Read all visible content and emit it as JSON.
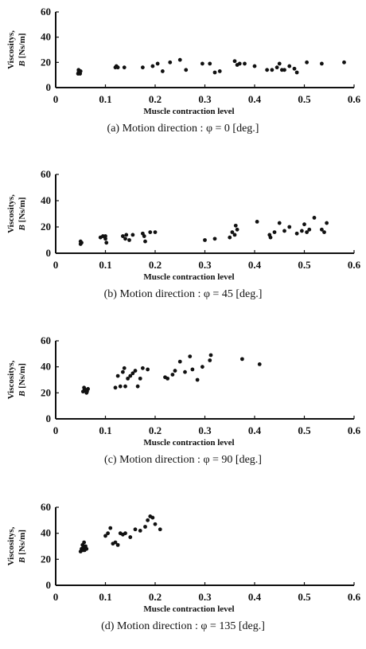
{
  "chart_data": [
    {
      "type": "scatter",
      "caption": "(a) Motion direction : φ = 0 [deg.]",
      "xlabel": "Muscle contraction level",
      "ylabel_line1": "Viscositys,",
      "ylabel_line2": "B [Ns/m]",
      "xlim": [
        0,
        0.6
      ],
      "ylim": [
        0,
        60
      ],
      "xticks": [
        "0",
        "0.1",
        "0.2",
        "0.3",
        "0.4",
        "0.5",
        "0.6"
      ],
      "yticks": [
        "0",
        "20",
        "40",
        "60"
      ],
      "grid": false,
      "points": [
        [
          0.045,
          11
        ],
        [
          0.046,
          12
        ],
        [
          0.047,
          13
        ],
        [
          0.048,
          12
        ],
        [
          0.049,
          11
        ],
        [
          0.046,
          14
        ],
        [
          0.05,
          13
        ],
        [
          0.048,
          12.5
        ],
        [
          0.12,
          16
        ],
        [
          0.122,
          17
        ],
        [
          0.125,
          16
        ],
        [
          0.138,
          16
        ],
        [
          0.175,
          16
        ],
        [
          0.195,
          17
        ],
        [
          0.205,
          19
        ],
        [
          0.215,
          13
        ],
        [
          0.23,
          20
        ],
        [
          0.25,
          22
        ],
        [
          0.262,
          14
        ],
        [
          0.295,
          19
        ],
        [
          0.31,
          19
        ],
        [
          0.32,
          12
        ],
        [
          0.33,
          13
        ],
        [
          0.36,
          21
        ],
        [
          0.365,
          18
        ],
        [
          0.37,
          19
        ],
        [
          0.38,
          19
        ],
        [
          0.4,
          17
        ],
        [
          0.425,
          14
        ],
        [
          0.435,
          14
        ],
        [
          0.445,
          16
        ],
        [
          0.45,
          19
        ],
        [
          0.455,
          14
        ],
        [
          0.46,
          14
        ],
        [
          0.47,
          17
        ],
        [
          0.48,
          15
        ],
        [
          0.485,
          12
        ],
        [
          0.505,
          20
        ],
        [
          0.535,
          19
        ],
        [
          0.58,
          20
        ]
      ]
    },
    {
      "type": "scatter",
      "caption": "(b) Motion direction : φ = 45 [deg.]",
      "xlabel": "Muscle contraction level",
      "ylabel_line1": "Viscositys,",
      "ylabel_line2": "B [Ns/m]",
      "xlim": [
        0,
        0.6
      ],
      "ylim": [
        0,
        60
      ],
      "xticks": [
        "0",
        "0.1",
        "0.2",
        "0.3",
        "0.4",
        "0.5",
        "0.6"
      ],
      "yticks": [
        "0",
        "20",
        "40",
        "60"
      ],
      "grid": false,
      "points": [
        [
          0.05,
          7
        ],
        [
          0.05,
          9
        ],
        [
          0.052,
          8
        ],
        [
          0.09,
          12
        ],
        [
          0.095,
          13
        ],
        [
          0.1,
          11
        ],
        [
          0.1,
          13
        ],
        [
          0.102,
          8
        ],
        [
          0.135,
          13
        ],
        [
          0.14,
          11
        ],
        [
          0.142,
          14
        ],
        [
          0.148,
          10
        ],
        [
          0.155,
          14
        ],
        [
          0.175,
          15
        ],
        [
          0.178,
          13
        ],
        [
          0.18,
          9
        ],
        [
          0.19,
          16
        ],
        [
          0.2,
          16
        ],
        [
          0.3,
          10
        ],
        [
          0.32,
          11
        ],
        [
          0.35,
          12
        ],
        [
          0.355,
          16
        ],
        [
          0.36,
          14
        ],
        [
          0.362,
          21
        ],
        [
          0.365,
          18
        ],
        [
          0.405,
          24
        ],
        [
          0.43,
          14
        ],
        [
          0.432,
          12
        ],
        [
          0.44,
          16
        ],
        [
          0.45,
          23
        ],
        [
          0.46,
          17
        ],
        [
          0.47,
          20
        ],
        [
          0.485,
          15
        ],
        [
          0.495,
          17
        ],
        [
          0.5,
          22
        ],
        [
          0.505,
          16
        ],
        [
          0.51,
          18
        ],
        [
          0.52,
          27
        ],
        [
          0.535,
          18
        ],
        [
          0.54,
          16
        ],
        [
          0.545,
          23
        ]
      ]
    },
    {
      "type": "scatter",
      "caption": "(c) Motion direction : φ = 90 [deg.]",
      "xlabel": "Muscle contraction level",
      "ylabel_line1": "Viscositys,",
      "ylabel_line2": "B [Ns/m]",
      "xlim": [
        0,
        0.6
      ],
      "ylim": [
        0,
        60
      ],
      "xticks": [
        "0",
        "0.1",
        "0.2",
        "0.3",
        "0.4",
        "0.5",
        "0.6"
      ],
      "yticks": [
        "0",
        "20",
        "40",
        "60"
      ],
      "grid": false,
      "points": [
        [
          0.055,
          21
        ],
        [
          0.058,
          23
        ],
        [
          0.06,
          22
        ],
        [
          0.062,
          20
        ],
        [
          0.065,
          23
        ],
        [
          0.057,
          24
        ],
        [
          0.063,
          21
        ],
        [
          0.12,
          24
        ],
        [
          0.125,
          33
        ],
        [
          0.13,
          25
        ],
        [
          0.135,
          36
        ],
        [
          0.138,
          39
        ],
        [
          0.14,
          25
        ],
        [
          0.145,
          31
        ],
        [
          0.15,
          33
        ],
        [
          0.155,
          35
        ],
        [
          0.16,
          37
        ],
        [
          0.165,
          25
        ],
        [
          0.17,
          31
        ],
        [
          0.175,
          39
        ],
        [
          0.185,
          38
        ],
        [
          0.22,
          32
        ],
        [
          0.225,
          31
        ],
        [
          0.235,
          34
        ],
        [
          0.24,
          37
        ],
        [
          0.25,
          44
        ],
        [
          0.26,
          36
        ],
        [
          0.27,
          48
        ],
        [
          0.275,
          38
        ],
        [
          0.285,
          30
        ],
        [
          0.295,
          40
        ],
        [
          0.31,
          45
        ],
        [
          0.312,
          49
        ],
        [
          0.375,
          46
        ],
        [
          0.41,
          42
        ]
      ]
    },
    {
      "type": "scatter",
      "caption": "(d) Motion direction : φ = 135 [deg.]",
      "xlabel": "Muscle contraction level",
      "ylabel_line1": "Viscositys,",
      "ylabel_line2": "B [Ns/m]",
      "xlim": [
        0,
        0.6
      ],
      "ylim": [
        0,
        60
      ],
      "xticks": [
        "0",
        "0.1",
        "0.2",
        "0.3",
        "0.4",
        "0.5",
        "0.6"
      ],
      "yticks": [
        "0",
        "20",
        "40",
        "60"
      ],
      "grid": false,
      "points": [
        [
          0.05,
          26
        ],
        [
          0.052,
          28
        ],
        [
          0.054,
          31
        ],
        [
          0.056,
          29
        ],
        [
          0.058,
          27
        ],
        [
          0.06,
          30
        ],
        [
          0.062,
          28
        ],
        [
          0.055,
          27
        ],
        [
          0.057,
          33
        ],
        [
          0.1,
          38
        ],
        [
          0.105,
          40
        ],
        [
          0.11,
          44
        ],
        [
          0.115,
          32
        ],
        [
          0.12,
          33
        ],
        [
          0.125,
          31
        ],
        [
          0.13,
          40
        ],
        [
          0.135,
          39
        ],
        [
          0.14,
          40
        ],
        [
          0.15,
          37
        ],
        [
          0.16,
          43
        ],
        [
          0.17,
          42
        ],
        [
          0.18,
          45
        ],
        [
          0.185,
          50
        ],
        [
          0.19,
          53
        ],
        [
          0.195,
          52
        ],
        [
          0.2,
          47
        ],
        [
          0.21,
          43
        ]
      ]
    }
  ]
}
